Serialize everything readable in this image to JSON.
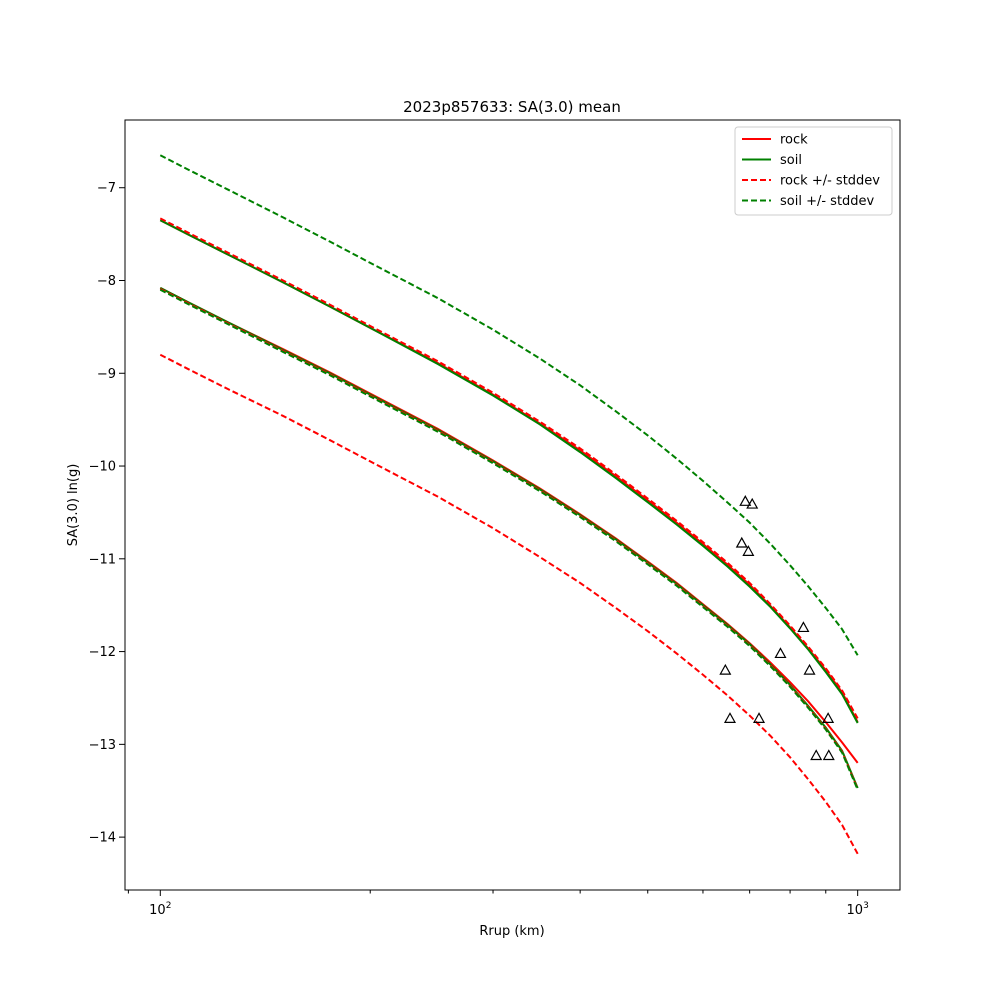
{
  "chart_data": {
    "type": "line",
    "title": "2023p857633: SA(3.0) mean",
    "xlabel": "Rrup (km)",
    "ylabel": "SA(3.0) ln(g)",
    "xscale": "log",
    "xlim": [
      89,
      1150
    ],
    "ylim": [
      -14.57,
      -6.27
    ],
    "xticks": [
      {
        "value": 100,
        "label": "10",
        "exp": "2"
      },
      {
        "value": 1000,
        "label": "10",
        "exp": "3"
      }
    ],
    "yticks": [
      -14,
      -13,
      -12,
      -11,
      -10,
      -9,
      -8,
      -7
    ],
    "ytick_labels": [
      "−14",
      "−13",
      "−12",
      "−11",
      "−10",
      "−9",
      "−8",
      "−7"
    ],
    "grid": false,
    "legend_position": "top-right",
    "legend": [
      {
        "label": "rock",
        "color": "#ff0000",
        "dash": "solid"
      },
      {
        "label": "soil",
        "color": "#008000",
        "dash": "solid"
      },
      {
        "label": "rock +/- stddev",
        "color": "#ff0000",
        "dash": "dashed"
      },
      {
        "label": "soil +/- stddev",
        "color": "#008000",
        "dash": "dashed"
      }
    ],
    "x": [
      100,
      110,
      125,
      150,
      175,
      200,
      250,
      300,
      350,
      400,
      450,
      500,
      550,
      600,
      650,
      700,
      750,
      800,
      850,
      900,
      950,
      1000
    ],
    "series": [
      {
        "name": "rock",
        "color": "#ff0000",
        "dash": "solid",
        "values": [
          -8.08,
          -8.24,
          -8.45,
          -8.74,
          -8.99,
          -9.22,
          -9.6,
          -9.94,
          -10.24,
          -10.52,
          -10.78,
          -11.03,
          -11.26,
          -11.49,
          -11.7,
          -11.91,
          -12.12,
          -12.33,
          -12.54,
          -12.76,
          -12.98,
          -13.2
        ]
      },
      {
        "name": "rock",
        "color": "#ff0000",
        "dash": "solid",
        "values": [
          -7.35,
          -7.51,
          -7.72,
          -8.02,
          -8.28,
          -8.51,
          -8.89,
          -9.23,
          -9.54,
          -9.83,
          -10.11,
          -10.37,
          -10.61,
          -10.84,
          -11.06,
          -11.28,
          -11.51,
          -11.74,
          -11.97,
          -12.2,
          -12.44,
          -12.76
        ]
      },
      {
        "name": "soil",
        "color": "#008000",
        "dash": "solid",
        "values": [
          -8.08,
          -8.24,
          -8.45,
          -8.75,
          -9.0,
          -9.23,
          -9.61,
          -9.95,
          -10.25,
          -10.53,
          -10.79,
          -11.04,
          -11.27,
          -11.5,
          -11.71,
          -11.92,
          -12.14,
          -12.36,
          -12.59,
          -12.82,
          -13.07,
          -13.47
        ]
      },
      {
        "name": "soil",
        "color": "#008000",
        "dash": "solid",
        "values": [
          -7.35,
          -7.51,
          -7.72,
          -8.02,
          -8.28,
          -8.51,
          -8.9,
          -9.24,
          -9.55,
          -9.85,
          -10.13,
          -10.39,
          -10.63,
          -10.86,
          -11.08,
          -11.3,
          -11.52,
          -11.75,
          -11.98,
          -12.22,
          -12.46,
          -12.77
        ]
      },
      {
        "name": "rock +/- stddev",
        "color": "#ff0000",
        "dash": "dashed",
        "values": [
          -8.8,
          -8.96,
          -9.17,
          -9.46,
          -9.72,
          -9.95,
          -10.33,
          -10.67,
          -10.98,
          -11.26,
          -11.53,
          -11.78,
          -12.02,
          -12.25,
          -12.47,
          -12.69,
          -12.91,
          -13.14,
          -13.38,
          -13.62,
          -13.87,
          -14.18
        ]
      },
      {
        "name": "rock +/- stddev",
        "color": "#ff0000",
        "dash": "dashed",
        "values": [
          -7.33,
          -7.49,
          -7.7,
          -8.0,
          -8.26,
          -8.49,
          -8.87,
          -9.21,
          -9.52,
          -9.81,
          -10.09,
          -10.35,
          -10.59,
          -10.82,
          -11.04,
          -11.26,
          -11.49,
          -11.72,
          -11.95,
          -12.18,
          -12.42,
          -12.72
        ]
      },
      {
        "name": "rock +/- stddev",
        "color": "#ff0000",
        "dash": "dashed",
        "values": [
          -8.09,
          -8.25,
          -8.46,
          -8.76,
          -9.01,
          -9.24,
          -9.62,
          -9.96,
          -10.26,
          -10.54,
          -10.8,
          -11.05,
          -11.28,
          -11.51,
          -11.72,
          -11.93,
          -12.15,
          -12.37,
          -12.6,
          -12.83,
          -13.08,
          -13.48
        ]
      },
      {
        "name": "soil +/- stddev",
        "color": "#008000",
        "dash": "dashed",
        "values": [
          -6.65,
          -6.81,
          -7.02,
          -7.32,
          -7.58,
          -7.81,
          -8.19,
          -8.53,
          -8.84,
          -9.13,
          -9.41,
          -9.67,
          -9.92,
          -10.16,
          -10.39,
          -10.61,
          -10.84,
          -11.07,
          -11.3,
          -11.53,
          -11.76,
          -12.04
        ]
      },
      {
        "name": "soil +/- stddev",
        "color": "#008000",
        "dash": "dashed",
        "values": [
          -8.1,
          -8.26,
          -8.47,
          -8.77,
          -9.02,
          -9.25,
          -9.63,
          -9.97,
          -10.27,
          -10.55,
          -10.81,
          -11.06,
          -11.29,
          -11.52,
          -11.73,
          -11.94,
          -12.16,
          -12.38,
          -12.61,
          -12.84,
          -13.09,
          -13.49
        ]
      }
    ],
    "observations": {
      "marker": "triangle",
      "color": "#000000",
      "points": [
        {
          "x": 690,
          "y": -10.38
        },
        {
          "x": 706,
          "y": -10.41
        },
        {
          "x": 682,
          "y": -10.83
        },
        {
          "x": 697,
          "y": -10.92
        },
        {
          "x": 836,
          "y": -11.74
        },
        {
          "x": 775,
          "y": -12.02
        },
        {
          "x": 646,
          "y": -12.2
        },
        {
          "x": 853,
          "y": -12.2
        },
        {
          "x": 656,
          "y": -12.72
        },
        {
          "x": 722,
          "y": -12.72
        },
        {
          "x": 907,
          "y": -12.72
        },
        {
          "x": 872,
          "y": -13.12
        },
        {
          "x": 909,
          "y": -13.12
        }
      ]
    }
  }
}
